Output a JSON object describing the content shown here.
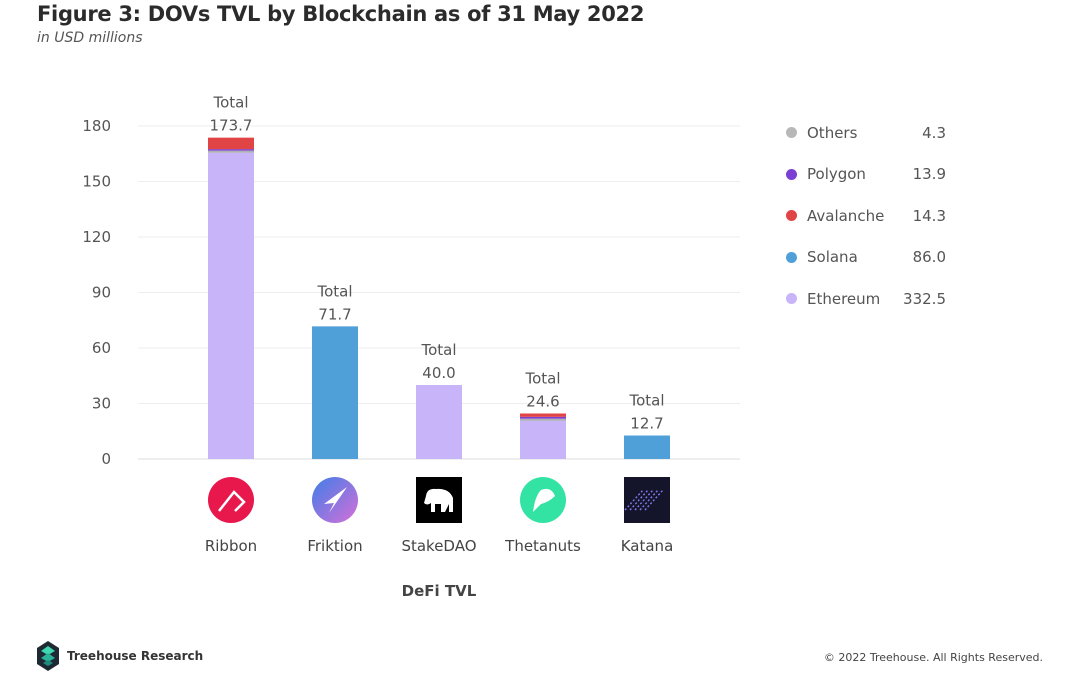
{
  "header": {
    "title": "Figure 3: DOVs TVL by Blockchain as of 31 May 2022",
    "subtitle": "in USD millions"
  },
  "chart_data": {
    "type": "bar",
    "stacked": true,
    "title": "Figure 3: DOVs TVL by Blockchain as of 31 May 2022",
    "subtitle": "in USD millions",
    "xlabel": "DeFi TVL",
    "ylabel": "",
    "ylim": [
      0,
      180
    ],
    "yticks": [
      0,
      30,
      60,
      90,
      120,
      150,
      180
    ],
    "grid": true,
    "legend_position": "right",
    "categories": [
      "Ribbon",
      "Friktion",
      "StakeDAO",
      "Thetanuts",
      "Katana"
    ],
    "total_label": "Total",
    "totals": [
      "173.7",
      "71.7",
      "40.0",
      "24.6",
      "12.7"
    ],
    "series": [
      {
        "name": "Ethereum",
        "color": "#c8b4f8",
        "values": [
          165.5,
          0,
          40.0,
          20.6,
          0
        ]
      },
      {
        "name": "Solana",
        "color": "#4fa0d8",
        "values": [
          0,
          71.7,
          0,
          0,
          12.7
        ]
      },
      {
        "name": "Others",
        "color": "#b0b0b8",
        "values": [
          1.2,
          0,
          0,
          1.2,
          0
        ]
      },
      {
        "name": "Polygon",
        "color": "#7b3fd4",
        "values": [
          0.8,
          0,
          0,
          1.0,
          0
        ]
      },
      {
        "name": "Avalanche",
        "color": "#e04444",
        "values": [
          6.2,
          0,
          0,
          1.8,
          0
        ]
      }
    ],
    "legend": [
      {
        "name": "Others",
        "value": "4.3",
        "color": "#b8b8b8"
      },
      {
        "name": "Polygon",
        "value": "13.9",
        "color": "#7b3fd4"
      },
      {
        "name": "Avalanche",
        "value": "14.3",
        "color": "#e04444"
      },
      {
        "name": "Solana",
        "value": "86.0",
        "color": "#4fa0d8"
      },
      {
        "name": "Ethereum",
        "value": "332.5",
        "color": "#c8b4f8"
      }
    ],
    "category_icons": [
      "ribbon-logo",
      "friktion-logo",
      "stakedao-logo",
      "thetanuts-logo",
      "katana-logo"
    ]
  },
  "footer": {
    "brand": "Treehouse Research",
    "copyright": "© 2022 Treehouse. All Rights Reserved."
  }
}
